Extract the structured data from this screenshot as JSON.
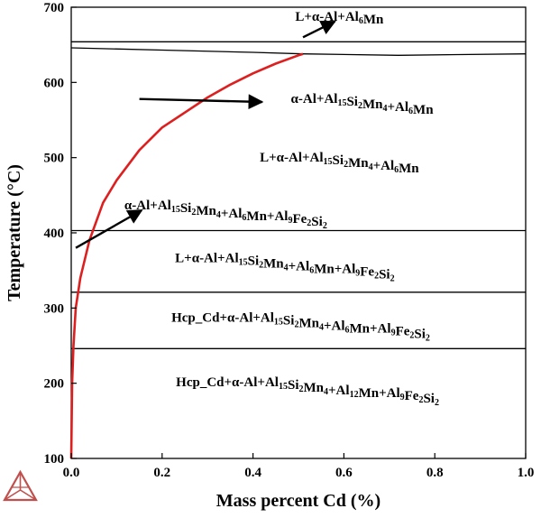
{
  "chart_data": {
    "type": "line",
    "xlabel": "Mass percent Cd (%)",
    "ylabel": "Temperature (°C)",
    "xlim": [
      0,
      1.0
    ],
    "ylim": [
      100,
      700
    ],
    "xticks": [
      "0.0",
      "0.2",
      "0.4",
      "0.6",
      "0.8",
      "1.0"
    ],
    "yticks": [
      "100",
      "200",
      "300",
      "400",
      "500",
      "600",
      "700"
    ],
    "grid": false,
    "colors": {
      "solubility_curve": "#dd1f1f",
      "phase_boundary": "#000000",
      "logo": "#c0504d"
    },
    "phase_boundaries": [
      {
        "x": [
          0,
          1.0
        ],
        "y": [
          654,
          654
        ]
      },
      {
        "x": [
          0,
          0.2,
          0.4,
          0.51,
          0.72,
          0.85,
          1.0
        ],
        "y": [
          646,
          643,
          640,
          638,
          636,
          637,
          638
        ]
      },
      {
        "x": [
          0,
          1.0
        ],
        "y": [
          403,
          403
        ]
      },
      {
        "x": [
          0,
          1.0
        ],
        "y": [
          321,
          321
        ]
      },
      {
        "x": [
          0,
          1.0
        ],
        "y": [
          246,
          246
        ]
      }
    ],
    "series": [
      {
        "x": [
          0.0,
          0.002,
          0.005,
          0.01,
          0.02,
          0.04,
          0.07,
          0.1,
          0.15,
          0.2,
          0.25,
          0.3,
          0.35,
          0.4,
          0.45,
          0.5,
          0.51
        ],
        "y": [
          100,
          200,
          250,
          300,
          340,
          390,
          440,
          470,
          510,
          540,
          560,
          580,
          597,
          612,
          625,
          636,
          638
        ]
      }
    ],
    "annotations": [
      {
        "text": "L+α-Al+Al₆Mn",
        "x": 0.59,
        "y": 682
      },
      {
        "text": "α-Al+Al₁₅Si₂Mn₄+Al₆Mn",
        "x": 0.64,
        "y": 573
      },
      {
        "text": "L+α-Al+Al₁₅Si₂Mn₄+Al₆Mn",
        "x": 0.59,
        "y": 495
      },
      {
        "text": "α-Al+Al₁₅Si₂Mn₄+Al₆Mn+Al₉Fe₂Si₂",
        "x": 0.34,
        "y": 431
      },
      {
        "text": "L+α-Al+Al₁₅Si₂Mn₄+Al₆Mn+Al₉Fe₂Si₂",
        "x": 0.47,
        "y": 361
      },
      {
        "text": "Hcp_Cd+α-Al+Al₁₅Si₂Mn₄+Al₆Mn+Al₉Fe₂Si₂",
        "x": 0.505,
        "y": 282
      },
      {
        "text": "Hcp_Cd+α-Al+Al₁₅Si₂Mn₄+Al₁₂Mn+Al₉Fe₂Si₂",
        "x": 0.52,
        "y": 196
      }
    ],
    "arrows": [
      {
        "from": [
          0.51,
          660
        ],
        "to": [
          0.58,
          681
        ]
      },
      {
        "from": [
          0.15,
          578
        ],
        "to": [
          0.42,
          574
        ]
      },
      {
        "from": [
          0.01,
          380
        ],
        "to": [
          0.155,
          430
        ]
      }
    ]
  }
}
